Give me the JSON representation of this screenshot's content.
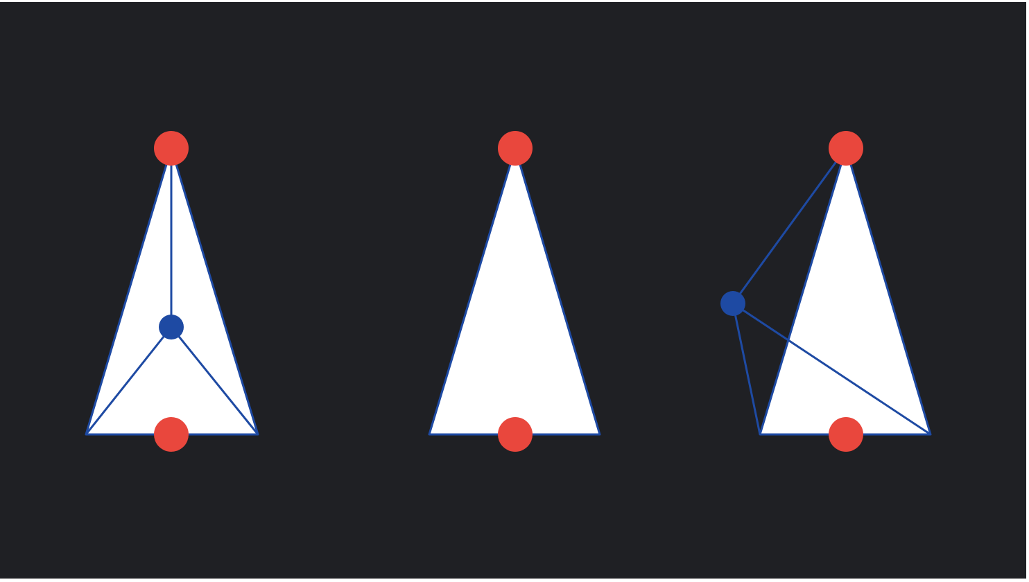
{
  "colors": {
    "page": "#ffffff",
    "background": "#1f2024",
    "triangle_fill": "#ffffff",
    "edge": "#1e4aa3",
    "midpoint": "#e9473d",
    "free_point": "#1e4aa3"
  },
  "figures": [
    {
      "id": "left",
      "triangle": true,
      "free_point": "inside",
      "connections": [
        "apex",
        "base-left",
        "base-right"
      ],
      "midpoints": [
        "apex",
        "base-center"
      ]
    },
    {
      "id": "middle",
      "triangle": true,
      "free_point": "none",
      "connections": [],
      "midpoints": [
        "apex",
        "base-center"
      ]
    },
    {
      "id": "right",
      "triangle": true,
      "free_point": "outside-left",
      "connections": [
        "apex",
        "base-left",
        "base-right"
      ],
      "midpoints": [
        "apex",
        "base-center"
      ]
    }
  ]
}
